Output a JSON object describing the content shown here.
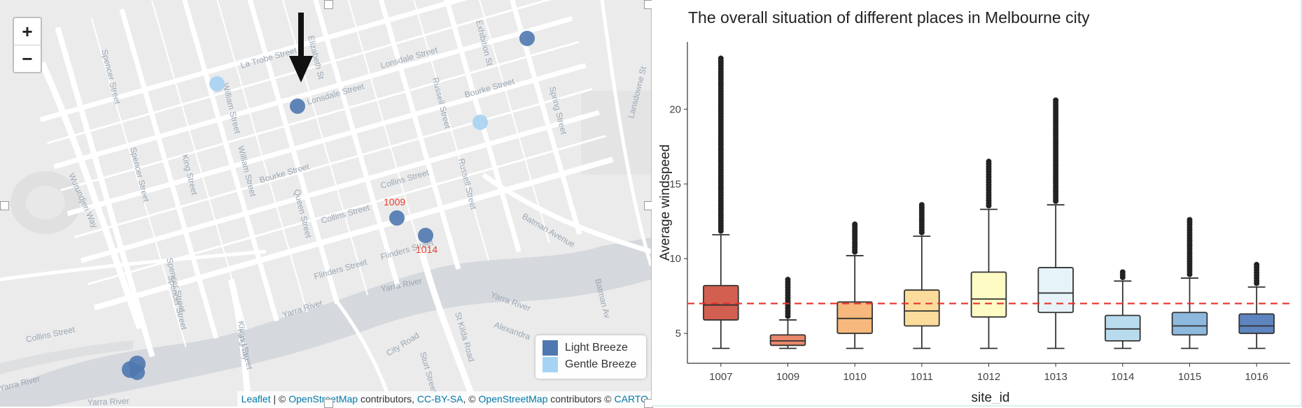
{
  "map": {
    "zoom_in_label": "+",
    "zoom_out_label": "−",
    "streets": [
      "La Trobe Street",
      "Lonsdale Street",
      "Lonsdale Street",
      "Bourke Street",
      "Bourke Street",
      "Collins Street",
      "Collins Street",
      "Flinders Street",
      "Flinders Street",
      "Spencer Street",
      "Spencer Street",
      "Spencer Street",
      "King Street",
      "King Street",
      "William Street",
      "William Street",
      "Queen Street",
      "Elizabeth St",
      "Russell Street",
      "Russell Street",
      "Exhibition St",
      "Spring Street",
      "Batman Avenue",
      "Batman Av",
      "Lansdowne St",
      "Wurundjeri Way",
      "Kings Way",
      "Yarra River",
      "Yarra River",
      "Yarra River",
      "Yarra River",
      "Yarra River",
      "City Road",
      "Sturt Street",
      "St Kilda Road",
      "Alexandra",
      "Collins Street",
      "Spencer Street"
    ],
    "site_labels": [
      "1009",
      "1014"
    ],
    "legend": [
      {
        "label": "Light Breeze",
        "color": "#4f78b0"
      },
      {
        "label": "Gentle Breeze",
        "color": "#a6d3f3"
      }
    ],
    "attribution": {
      "leaflet": "Leaflet",
      "sep1": " | © ",
      "osm1": "OpenStreetMap",
      "contrib1": " contributors, ",
      "license": "CC-BY-SA",
      "sep2": ", © ",
      "osm2": "OpenStreetMap",
      "contrib2": " contributors © ",
      "carto": "CARTO"
    },
    "colors": {
      "light_breeze": "#4f78b0",
      "gentle_breeze": "#a6d3f3",
      "site_label": "#e8402e",
      "arrow": "#111111"
    }
  },
  "chart": {
    "title": "The overall situation of different places in Melbourne city",
    "xlabel": "site_id",
    "ylabel": "Average windspeed"
  },
  "chart_data": {
    "type": "boxplot",
    "title": "The overall situation of different places in Melbourne city",
    "xlabel": "site_id",
    "ylabel": "Average windspeed",
    "ylim": [
      3,
      24.5
    ],
    "yticks": [
      5,
      10,
      15,
      20
    ],
    "reference_line": 7.0,
    "reference_line_color": "#e8312b",
    "categories": [
      "1007",
      "1009",
      "1010",
      "1011",
      "1012",
      "1013",
      "1014",
      "1015",
      "1016"
    ],
    "boxes": [
      {
        "site": "1007",
        "min": 4.0,
        "q1": 5.9,
        "median": 6.9,
        "q3": 8.2,
        "whisker_high": 11.6,
        "outlier_max": 23.4,
        "color": "#d35f50"
      },
      {
        "site": "1009",
        "min": 4.0,
        "q1": 4.2,
        "median": 4.5,
        "q3": 4.9,
        "whisker_high": 5.9,
        "outlier_max": 8.6,
        "color": "#e9876a"
      },
      {
        "site": "1010",
        "min": 4.0,
        "q1": 5.0,
        "median": 6.0,
        "q3": 7.1,
        "whisker_high": 10.2,
        "outlier_max": 12.3,
        "color": "#f6b87c"
      },
      {
        "site": "1011",
        "min": 4.0,
        "q1": 5.5,
        "median": 6.5,
        "q3": 7.9,
        "whisker_high": 11.5,
        "outlier_max": 13.6,
        "color": "#fbdc9c"
      },
      {
        "site": "1012",
        "min": 4.0,
        "q1": 6.1,
        "median": 7.3,
        "q3": 9.1,
        "whisker_high": 13.3,
        "outlier_max": 16.5,
        "color": "#fefbc4"
      },
      {
        "site": "1013",
        "min": 4.0,
        "q1": 6.4,
        "median": 7.7,
        "q3": 9.4,
        "whisker_high": 13.6,
        "outlier_max": 20.6,
        "color": "#e6f3f8"
      },
      {
        "site": "1014",
        "min": 4.0,
        "q1": 4.5,
        "median": 5.3,
        "q3": 6.2,
        "whisker_high": 8.5,
        "outlier_max": 9.1,
        "color": "#b9dbee"
      },
      {
        "site": "1015",
        "min": 4.0,
        "q1": 4.9,
        "median": 5.5,
        "q3": 6.4,
        "whisker_high": 8.7,
        "outlier_max": 12.6,
        "color": "#8eb9de"
      },
      {
        "site": "1016",
        "min": 4.0,
        "q1": 5.0,
        "median": 5.5,
        "q3": 6.3,
        "whisker_high": 8.1,
        "outlier_max": 9.6,
        "color": "#5e85bf"
      }
    ]
  }
}
